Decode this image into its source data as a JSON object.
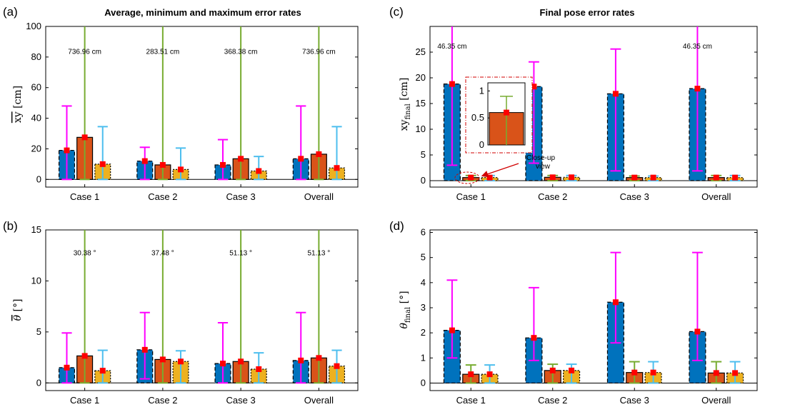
{
  "colors": {
    "series": [
      "#0072BD",
      "#D95319",
      "#EDB120"
    ],
    "error_bars": [
      "#FF00FF",
      "#77AC30",
      "#4DBEEE"
    ],
    "marker": "#FF0000",
    "callout": "#D00000"
  },
  "chart_data": [
    {
      "type": "bar",
      "panel_label": "(a)",
      "title": "Average, minimum and maximum error rates",
      "ylabel": "xy [cm]",
      "ylabel_overline": true,
      "categories": [
        "Case 1",
        "Case 2",
        "Case 3",
        "Overall"
      ],
      "ylim": [
        -5,
        100
      ],
      "yticks": [
        0,
        20,
        40,
        60,
        80,
        100
      ],
      "series": [
        {
          "values": [
            19,
            12,
            9.5,
            13.5
          ],
          "min": [
            0,
            0,
            0,
            0
          ],
          "max": [
            48,
            21,
            26,
            48
          ]
        },
        {
          "values": [
            27.5,
            9.5,
            13.5,
            16.5
          ],
          "min": [
            0,
            0,
            0,
            0
          ],
          "max": [
            736.96,
            283.51,
            368.38,
            736.96
          ]
        },
        {
          "values": [
            10,
            6.5,
            5.5,
            7.5
          ],
          "min": [
            0,
            0,
            0,
            0
          ],
          "max": [
            34.5,
            20.5,
            15,
            34.5
          ]
        }
      ],
      "annotations": [
        "736.96 cm",
        "283.51 cm",
        "368.38 cm",
        "736.96 cm"
      ],
      "annotation_series": 1,
      "annotation_y": 82
    },
    {
      "type": "bar",
      "panel_label": "(b)",
      "title": "",
      "ylabel": "θ [°]",
      "ylabel_overline": true,
      "categories": [
        "Case 1",
        "Case 2",
        "Case 3",
        "Overall"
      ],
      "ylim": [
        -0.75,
        15
      ],
      "yticks": [
        0,
        5,
        10,
        15
      ],
      "series": [
        {
          "values": [
            1.5,
            3.25,
            1.9,
            2.2
          ],
          "min": [
            0,
            0.4,
            0,
            0
          ],
          "max": [
            4.9,
            6.9,
            5.9,
            6.9
          ]
        },
        {
          "values": [
            2.65,
            2.3,
            2.1,
            2.45
          ],
          "min": [
            0,
            0,
            0,
            0
          ],
          "max": [
            30.38,
            37.48,
            51.13,
            51.13
          ]
        },
        {
          "values": [
            1.2,
            2.1,
            1.35,
            1.65
          ],
          "min": [
            0,
            0,
            0,
            0
          ],
          "max": [
            3.2,
            3.15,
            2.95,
            3.2
          ]
        }
      ],
      "annotations": [
        "30.38 °",
        "37.48 °",
        "51.13 °",
        "51.13 °"
      ],
      "annotation_series": 1,
      "annotation_y": 12.5
    },
    {
      "type": "bar",
      "panel_label": "(c)",
      "title": "Final pose error rates",
      "ylabel": "xy_final [cm]",
      "ylabel_overline": false,
      "categories": [
        "Case 1",
        "Case 2",
        "Case 3",
        "Overall"
      ],
      "ylim": [
        -1.25,
        30
      ],
      "yticks": [
        0,
        5,
        10,
        15,
        20,
        25
      ],
      "series": [
        {
          "values": [
            18.8,
            18.3,
            16.9,
            17.9
          ],
          "min": [
            3,
            3.4,
            1.9,
            1.9
          ],
          "max": [
            46.35,
            23.1,
            25.6,
            46.35
          ]
        },
        {
          "values": [
            0.6,
            0.65,
            0.6,
            0.6
          ],
          "min": [
            0,
            0,
            0,
            0
          ],
          "max": [
            1.0,
            1.0,
            0.9,
            1.0
          ]
        },
        {
          "values": [
            0.6,
            0.65,
            0.6,
            0.6
          ],
          "min": [
            0,
            0,
            0,
            0
          ],
          "max": [
            1.0,
            1.0,
            0.9,
            1.0
          ]
        }
      ],
      "annotations": [
        "46.35 cm",
        "",
        "",
        "46.35 cm"
      ],
      "annotation_series": 0,
      "annotation_y": 25.7,
      "inset": {
        "label": "Close-up view",
        "ylim": [
          0,
          1.15
        ],
        "yticks": [
          0,
          0.5,
          1
        ],
        "ytick_labels": [
          "0",
          "0.5",
          "1"
        ],
        "value": 0.6,
        "min": 0,
        "max": 0.9
      }
    },
    {
      "type": "bar",
      "panel_label": "(d)",
      "title": "",
      "ylabel": "θ_final [°]",
      "ylabel_overline": false,
      "categories": [
        "Case 1",
        "Case 2",
        "Case 3",
        "Overall"
      ],
      "ylim": [
        -0.3,
        6.1
      ],
      "yticks": [
        0,
        1,
        2,
        3,
        4,
        5,
        6
      ],
      "series": [
        {
          "values": [
            2.1,
            1.8,
            3.22,
            2.05
          ],
          "min": [
            1.0,
            0.9,
            1.6,
            0.9
          ],
          "max": [
            4.1,
            3.8,
            5.2,
            5.2
          ]
        },
        {
          "values": [
            0.35,
            0.5,
            0.42,
            0.4
          ],
          "min": [
            0,
            0,
            0,
            0
          ],
          "max": [
            0.72,
            0.75,
            0.85,
            0.85
          ]
        },
        {
          "values": [
            0.35,
            0.5,
            0.42,
            0.4
          ],
          "min": [
            0,
            0,
            0,
            0
          ],
          "max": [
            0.72,
            0.75,
            0.85,
            0.85
          ]
        }
      ],
      "annotations": [
        "",
        "",
        "",
        ""
      ],
      "annotation_series": 0,
      "annotation_y": 0
    }
  ]
}
